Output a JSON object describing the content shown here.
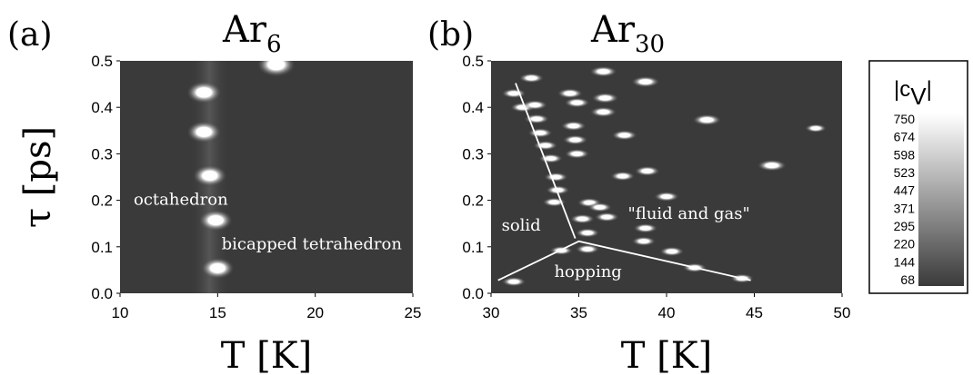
{
  "chart_data": [
    {
      "type": "heatmap",
      "panel_label": "(a)",
      "title": {
        "base": "Ar",
        "sub": "6"
      },
      "xlabel": "T [K]",
      "ylabel": "τ [ps]",
      "xlim": [
        10,
        25
      ],
      "ylim": [
        0.0,
        0.5
      ],
      "xticks": [
        "10",
        "15",
        "20",
        "25"
      ],
      "xtick_values": [
        10,
        15,
        20,
        25
      ],
      "yticks": [
        "0.0",
        "0.1",
        "0.2",
        "0.3",
        "0.4",
        "0.5"
      ],
      "ytick_values": [
        0.0,
        0.1,
        0.2,
        0.3,
        0.4,
        0.5
      ],
      "background": "#3a3a3a",
      "points": [
        {
          "x": 14.3,
          "y": 0.432,
          "v": 620
        },
        {
          "x": 14.3,
          "y": 0.347,
          "v": 600
        },
        {
          "x": 14.6,
          "y": 0.253,
          "v": 590
        },
        {
          "x": 14.9,
          "y": 0.157,
          "v": 580
        },
        {
          "x": 15.0,
          "y": 0.054,
          "v": 560
        },
        {
          "x": 18.0,
          "y": 0.492,
          "v": 750
        }
      ],
      "annotations": [
        {
          "text": "octahedron",
          "x": 10.7,
          "y": 0.19
        },
        {
          "text": "bicapped tetrahedron",
          "x": 15.2,
          "y": 0.095
        }
      ]
    },
    {
      "type": "heatmap",
      "panel_label": "(b)",
      "title": {
        "base": "Ar",
        "sub": "30"
      },
      "xlabel": "T [K]",
      "xlim": [
        30,
        50
      ],
      "ylim": [
        0.0,
        0.5
      ],
      "xticks": [
        "30",
        "35",
        "40",
        "45",
        "50"
      ],
      "xtick_values": [
        30,
        35,
        40,
        45,
        50
      ],
      "yticks": [
        "0.0",
        "0.1",
        "0.2",
        "0.3",
        "0.4",
        "0.5"
      ],
      "ytick_values": [
        0.0,
        0.1,
        0.2,
        0.3,
        0.4,
        0.5
      ],
      "background": "#3a3a3a",
      "points": [
        {
          "x": 31.3,
          "y": 0.025,
          "v": 400
        },
        {
          "x": 31.3,
          "y": 0.43,
          "v": 420
        },
        {
          "x": 31.8,
          "y": 0.4,
          "v": 430
        },
        {
          "x": 32.3,
          "y": 0.463,
          "v": 440
        },
        {
          "x": 32.5,
          "y": 0.405,
          "v": 450
        },
        {
          "x": 32.6,
          "y": 0.375,
          "v": 450
        },
        {
          "x": 32.8,
          "y": 0.345,
          "v": 430
        },
        {
          "x": 33.1,
          "y": 0.318,
          "v": 420
        },
        {
          "x": 33.4,
          "y": 0.29,
          "v": 410
        },
        {
          "x": 33.7,
          "y": 0.25,
          "v": 400
        },
        {
          "x": 33.8,
          "y": 0.222,
          "v": 390
        },
        {
          "x": 33.6,
          "y": 0.196,
          "v": 380
        },
        {
          "x": 34.0,
          "y": 0.092,
          "v": 360
        },
        {
          "x": 34.5,
          "y": 0.43,
          "v": 480
        },
        {
          "x": 34.9,
          "y": 0.41,
          "v": 470
        },
        {
          "x": 34.7,
          "y": 0.36,
          "v": 460
        },
        {
          "x": 34.8,
          "y": 0.33,
          "v": 450
        },
        {
          "x": 34.9,
          "y": 0.3,
          "v": 440
        },
        {
          "x": 35.2,
          "y": 0.16,
          "v": 430
        },
        {
          "x": 35.5,
          "y": 0.095,
          "v": 400
        },
        {
          "x": 35.6,
          "y": 0.195,
          "v": 410
        },
        {
          "x": 35.5,
          "y": 0.13,
          "v": 400
        },
        {
          "x": 36.4,
          "y": 0.477,
          "v": 560
        },
        {
          "x": 36.5,
          "y": 0.42,
          "v": 540
        },
        {
          "x": 36.4,
          "y": 0.39,
          "v": 520
        },
        {
          "x": 36.6,
          "y": 0.164,
          "v": 420
        },
        {
          "x": 36.2,
          "y": 0.185,
          "v": 410
        },
        {
          "x": 37.6,
          "y": 0.34,
          "v": 480
        },
        {
          "x": 37.5,
          "y": 0.252,
          "v": 430
        },
        {
          "x": 38.8,
          "y": 0.455,
          "v": 600
        },
        {
          "x": 38.9,
          "y": 0.263,
          "v": 470
        },
        {
          "x": 38.8,
          "y": 0.14,
          "v": 420
        },
        {
          "x": 38.7,
          "y": 0.112,
          "v": 400
        },
        {
          "x": 40.0,
          "y": 0.208,
          "v": 450
        },
        {
          "x": 40.3,
          "y": 0.09,
          "v": 420
        },
        {
          "x": 41.6,
          "y": 0.055,
          "v": 400
        },
        {
          "x": 42.3,
          "y": 0.373,
          "v": 620
        },
        {
          "x": 44.3,
          "y": 0.032,
          "v": 380
        },
        {
          "x": 46.0,
          "y": 0.275,
          "v": 640
        },
        {
          "x": 48.5,
          "y": 0.355,
          "v": 300
        }
      ],
      "lines": [
        {
          "points": [
            [
              31.4,
              0.452
            ],
            [
              34.8,
              0.118
            ]
          ]
        },
        {
          "points": [
            [
              30.4,
              0.028
            ],
            [
              35.0,
              0.112
            ],
            [
              44.8,
              0.028
            ]
          ]
        }
      ],
      "annotations": [
        {
          "text": "solid",
          "x": 30.6,
          "y": 0.135
        },
        {
          "text": "hopping",
          "x": 33.6,
          "y": 0.035
        },
        {
          "text": "\"fluid and gas\"",
          "x": 37.8,
          "y": 0.16
        }
      ]
    }
  ],
  "colorbar": {
    "title": {
      "base": "|c",
      "sub": "V",
      "end": "|"
    },
    "levels": [
      "750",
      "674",
      "598",
      "523",
      "447",
      "371",
      "295",
      "220",
      "144",
      "68"
    ],
    "min": 68,
    "max": 750
  }
}
